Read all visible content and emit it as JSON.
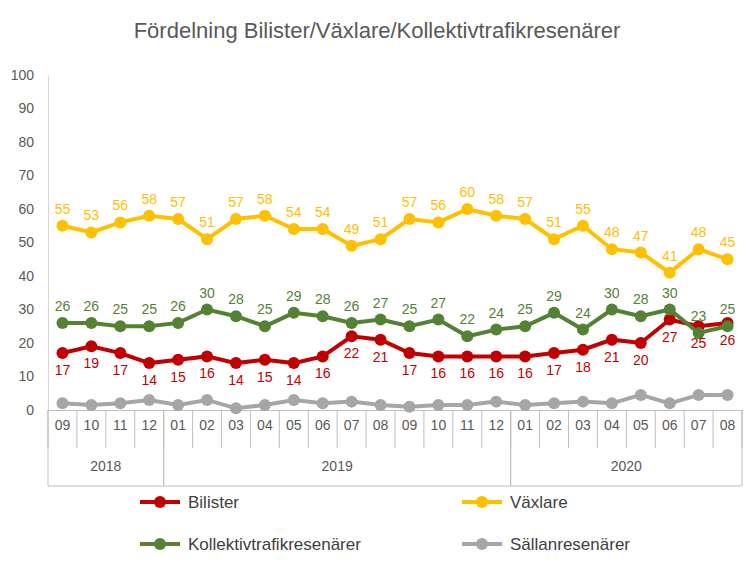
{
  "chart_data": {
    "type": "line",
    "title": "Fördelning Bilister/Växlare/Kollektivtrafikresenärer",
    "categories": [
      "09",
      "10",
      "11",
      "12",
      "01",
      "02",
      "03",
      "04",
      "05",
      "06",
      "07",
      "08",
      "09",
      "10",
      "11",
      "12",
      "01",
      "02",
      "03",
      "04",
      "05",
      "06",
      "07",
      "08"
    ],
    "x_groups": [
      {
        "label": "2018",
        "count": 4
      },
      {
        "label": "2019",
        "count": 12
      },
      {
        "label": "2020",
        "count": 8
      }
    ],
    "series": [
      {
        "name": "Bilister",
        "color": "#c00000",
        "marker": "circle",
        "data_labels": true,
        "values": [
          17,
          19,
          17,
          14,
          15,
          16,
          14,
          15,
          14,
          16,
          22,
          21,
          17,
          16,
          16,
          16,
          16,
          17,
          18,
          21,
          20,
          27,
          25,
          26
        ]
      },
      {
        "name": "Växlare",
        "color": "#ffc000",
        "marker": "circle",
        "data_labels": true,
        "values": [
          55,
          53,
          56,
          58,
          57,
          51,
          57,
          58,
          54,
          54,
          49,
          51,
          57,
          56,
          60,
          58,
          57,
          51,
          55,
          48,
          47,
          41,
          48,
          45
        ]
      },
      {
        "name": "Kollektivtrafikresenärer",
        "color": "#548235",
        "marker": "circle",
        "data_labels": true,
        "values": [
          26,
          26,
          25,
          25,
          26,
          30,
          28,
          25,
          29,
          28,
          26,
          27,
          25,
          27,
          22,
          24,
          25,
          29,
          24,
          30,
          28,
          30,
          23,
          25
        ]
      },
      {
        "name": "Sällanresenärer",
        "color": "#a6a6a6",
        "marker": "circle",
        "data_labels": false,
        "values": [
          2,
          1.5,
          2,
          3,
          1.5,
          3,
          0.5,
          1.5,
          3,
          2,
          2.5,
          1.5,
          1,
          1.5,
          1.5,
          2.5,
          1.5,
          2,
          2.5,
          2,
          4.5,
          2,
          4.5,
          4.5
        ]
      }
    ],
    "ylim": [
      0,
      100
    ],
    "yticks": [
      0,
      10,
      20,
      30,
      40,
      50,
      60,
      70,
      80,
      90,
      100
    ],
    "grid": false,
    "legend": "bottom"
  }
}
